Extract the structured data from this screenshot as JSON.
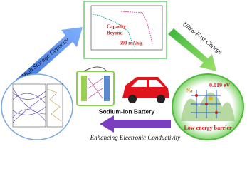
{
  "arrows": {
    "left": "High Storage Capacity",
    "right": "Ultra-Fast Charge",
    "bottom": "Enhancing Electronic Conductivity"
  },
  "center": {
    "label": "Sodium-Ion Battery"
  },
  "capacity_plot": {
    "line1": "Capacity",
    "line2": "Beyond",
    "line3": "590 mAh/g"
  },
  "barrier_panel": {
    "ion": "Na",
    "value": "0.019 eV",
    "caption": "Low energy barrier"
  }
}
